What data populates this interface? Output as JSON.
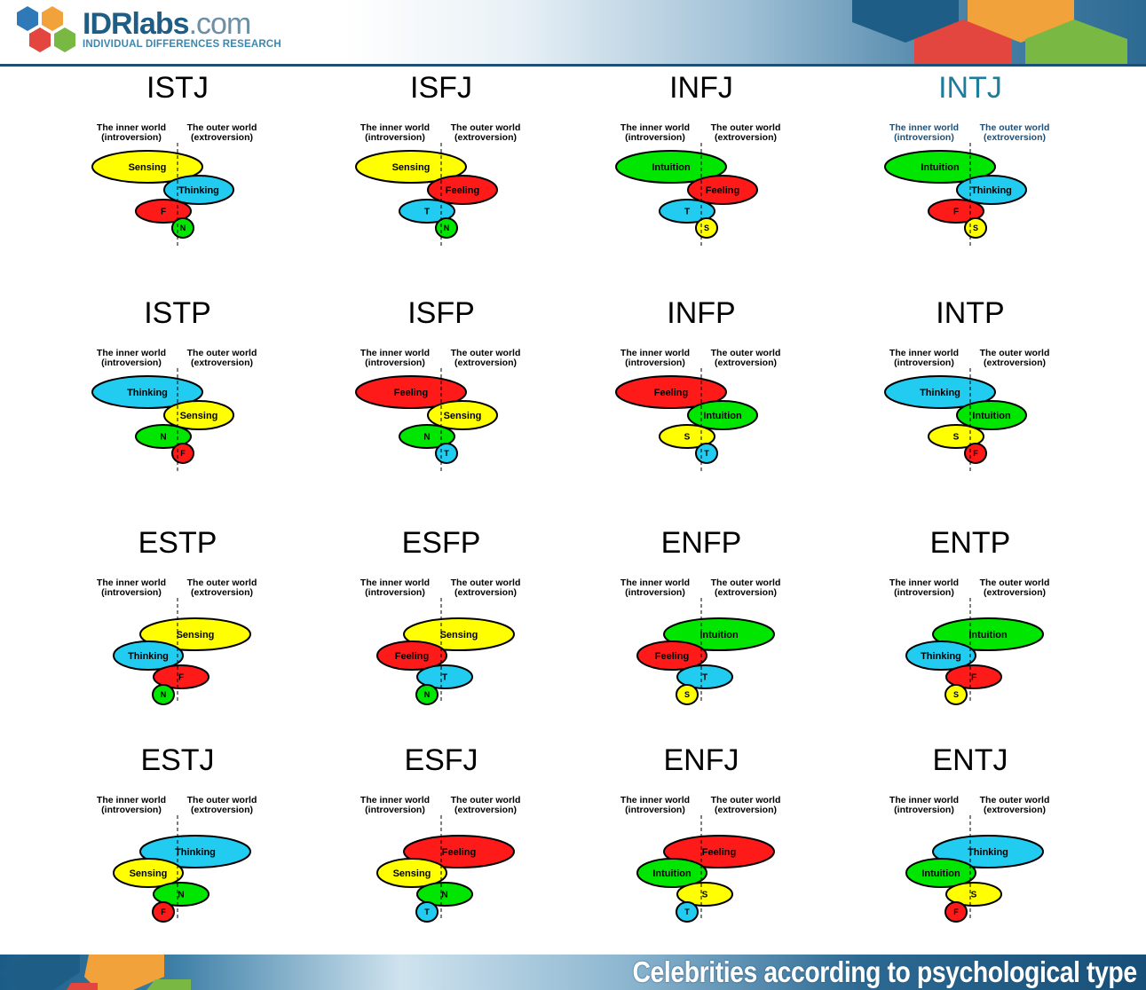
{
  "header": {
    "brand_main": "IDRlabs",
    "brand_domain": ".com",
    "tagline": "INDIVIDUAL DIFFERENCES RESEARCH"
  },
  "footer": {
    "title": "Celebrities according to psychological type"
  },
  "colors": {
    "Sensing": "#ffff00",
    "Intuition": "#00e600",
    "Thinking": "#22ccf0",
    "Feeling": "#ff1a1a",
    "highlight_title": "#1c7d9c"
  },
  "labels": {
    "inner_line1": "The inner world",
    "inner_line2": "(introversion)",
    "outer_line1": "The outer world",
    "outer_line2": "(extroversion)"
  },
  "types": [
    {
      "name": "ISTJ",
      "highlight": false,
      "functions": [
        {
          "label": "Sensing",
          "fn": "Sensing"
        },
        {
          "label": "Thinking",
          "fn": "Thinking"
        },
        {
          "label": "F",
          "fn": "Feeling"
        },
        {
          "label": "N",
          "fn": "Intuition"
        }
      ]
    },
    {
      "name": "ISFJ",
      "highlight": false,
      "functions": [
        {
          "label": "Sensing",
          "fn": "Sensing"
        },
        {
          "label": "Feeling",
          "fn": "Feeling"
        },
        {
          "label": "T",
          "fn": "Thinking"
        },
        {
          "label": "N",
          "fn": "Intuition"
        }
      ]
    },
    {
      "name": "INFJ",
      "highlight": false,
      "functions": [
        {
          "label": "Intuition",
          "fn": "Intuition"
        },
        {
          "label": "Feeling",
          "fn": "Feeling"
        },
        {
          "label": "T",
          "fn": "Thinking"
        },
        {
          "label": "S",
          "fn": "Sensing"
        }
      ]
    },
    {
      "name": "INTJ",
      "highlight": true,
      "functions": [
        {
          "label": "Intuition",
          "fn": "Intuition"
        },
        {
          "label": "Thinking",
          "fn": "Thinking"
        },
        {
          "label": "F",
          "fn": "Feeling"
        },
        {
          "label": "S",
          "fn": "Sensing"
        }
      ]
    },
    {
      "name": "ISTP",
      "highlight": false,
      "functions": [
        {
          "label": "Thinking",
          "fn": "Thinking"
        },
        {
          "label": "Sensing",
          "fn": "Sensing"
        },
        {
          "label": "N",
          "fn": "Intuition"
        },
        {
          "label": "F",
          "fn": "Feeling"
        }
      ]
    },
    {
      "name": "ISFP",
      "highlight": false,
      "functions": [
        {
          "label": "Feeling",
          "fn": "Feeling"
        },
        {
          "label": "Sensing",
          "fn": "Sensing"
        },
        {
          "label": "N",
          "fn": "Intuition"
        },
        {
          "label": "T",
          "fn": "Thinking"
        }
      ]
    },
    {
      "name": "INFP",
      "highlight": false,
      "functions": [
        {
          "label": "Feeling",
          "fn": "Feeling"
        },
        {
          "label": "Intuition",
          "fn": "Intuition"
        },
        {
          "label": "S",
          "fn": "Sensing"
        },
        {
          "label": "T",
          "fn": "Thinking"
        }
      ]
    },
    {
      "name": "INTP",
      "highlight": false,
      "functions": [
        {
          "label": "Thinking",
          "fn": "Thinking"
        },
        {
          "label": "Intuition",
          "fn": "Intuition"
        },
        {
          "label": "S",
          "fn": "Sensing"
        },
        {
          "label": "F",
          "fn": "Feeling"
        }
      ]
    },
    {
      "name": "ESTP",
      "highlight": false,
      "functions": [
        {
          "label": "Sensing",
          "fn": "Sensing"
        },
        {
          "label": "Thinking",
          "fn": "Thinking"
        },
        {
          "label": "F",
          "fn": "Feeling"
        },
        {
          "label": "N",
          "fn": "Intuition"
        }
      ]
    },
    {
      "name": "ESFP",
      "highlight": false,
      "functions": [
        {
          "label": "Sensing",
          "fn": "Sensing"
        },
        {
          "label": "Feeling",
          "fn": "Feeling"
        },
        {
          "label": "T",
          "fn": "Thinking"
        },
        {
          "label": "N",
          "fn": "Intuition"
        }
      ]
    },
    {
      "name": "ENFP",
      "highlight": false,
      "functions": [
        {
          "label": "Intuition",
          "fn": "Intuition"
        },
        {
          "label": "Feeling",
          "fn": "Feeling"
        },
        {
          "label": "T",
          "fn": "Thinking"
        },
        {
          "label": "S",
          "fn": "Sensing"
        }
      ]
    },
    {
      "name": "ENTP",
      "highlight": false,
      "functions": [
        {
          "label": "Intuition",
          "fn": "Intuition"
        },
        {
          "label": "Thinking",
          "fn": "Thinking"
        },
        {
          "label": "F",
          "fn": "Feeling"
        },
        {
          "label": "S",
          "fn": "Sensing"
        }
      ]
    },
    {
      "name": "ESTJ",
      "highlight": false,
      "functions": [
        {
          "label": "Thinking",
          "fn": "Thinking"
        },
        {
          "label": "Sensing",
          "fn": "Sensing"
        },
        {
          "label": "N",
          "fn": "Intuition"
        },
        {
          "label": "F",
          "fn": "Feeling"
        }
      ]
    },
    {
      "name": "ESFJ",
      "highlight": false,
      "functions": [
        {
          "label": "Feeling",
          "fn": "Feeling"
        },
        {
          "label": "Sensing",
          "fn": "Sensing"
        },
        {
          "label": "N",
          "fn": "Intuition"
        },
        {
          "label": "T",
          "fn": "Thinking"
        }
      ]
    },
    {
      "name": "ENFJ",
      "highlight": false,
      "functions": [
        {
          "label": "Feeling",
          "fn": "Feeling"
        },
        {
          "label": "Intuition",
          "fn": "Intuition"
        },
        {
          "label": "S",
          "fn": "Sensing"
        },
        {
          "label": "T",
          "fn": "Thinking"
        }
      ]
    },
    {
      "name": "ENTJ",
      "highlight": false,
      "functions": [
        {
          "label": "Thinking",
          "fn": "Thinking"
        },
        {
          "label": "Intuition",
          "fn": "Intuition"
        },
        {
          "label": "S",
          "fn": "Sensing"
        },
        {
          "label": "F",
          "fn": "Feeling"
        }
      ]
    }
  ]
}
